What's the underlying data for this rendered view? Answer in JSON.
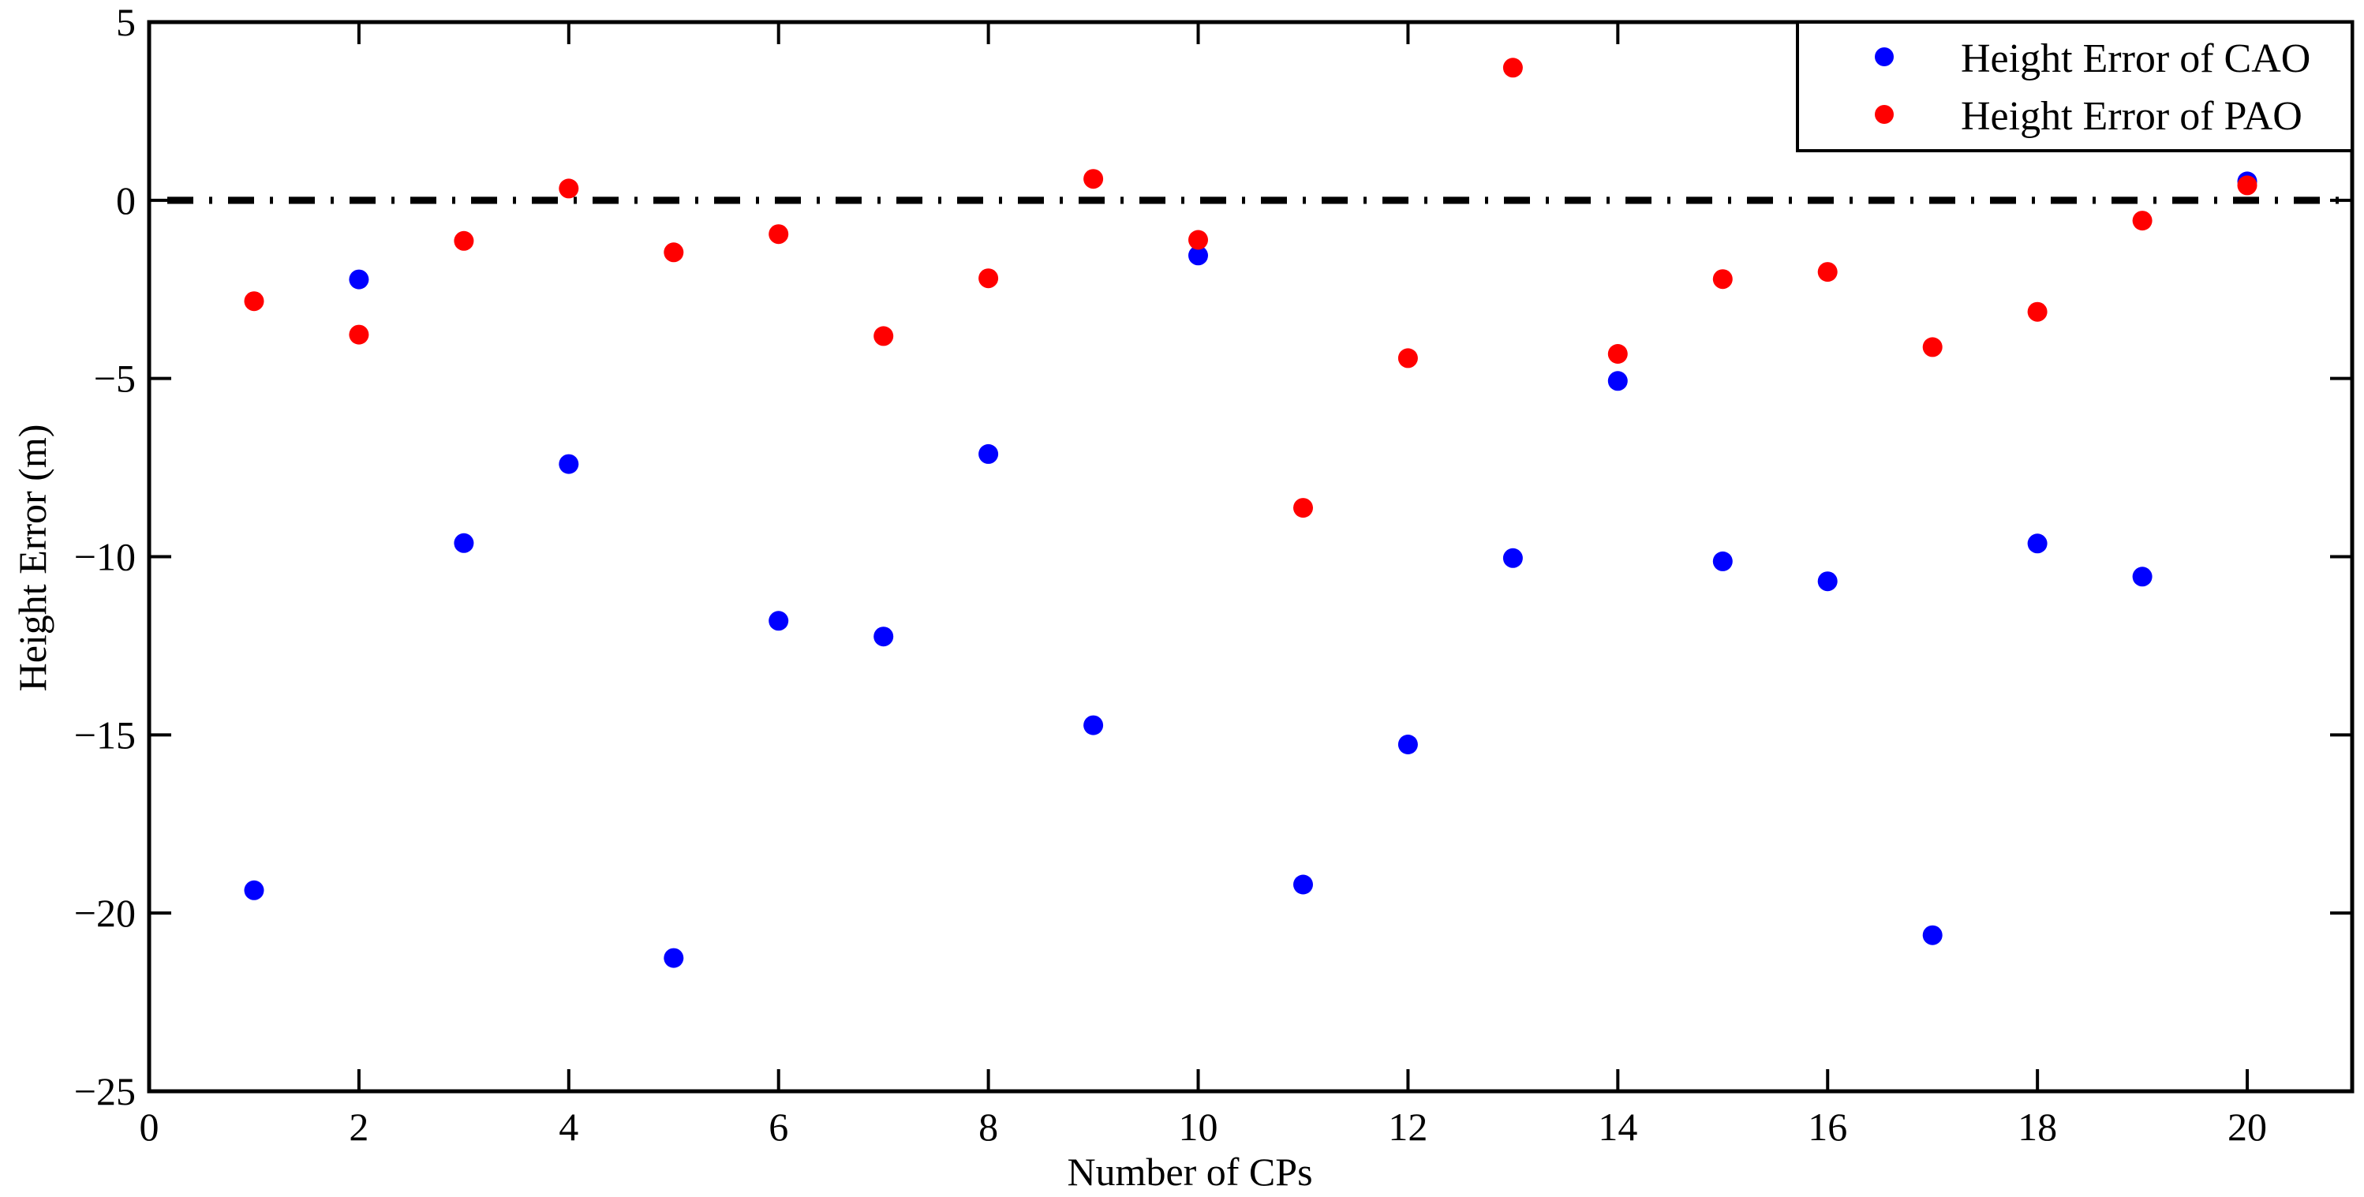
{
  "chart_data": {
    "type": "scatter",
    "title": "",
    "xlabel": "Number of CPs",
    "ylabel": "Height Error (m)",
    "xlim": [
      0,
      21
    ],
    "ylim": [
      -25,
      5
    ],
    "xticks": [
      0,
      2,
      4,
      6,
      8,
      10,
      12,
      14,
      16,
      18,
      20
    ],
    "yticks": [
      5,
      0,
      -5,
      -10,
      -15,
      -20,
      -25
    ],
    "grid": false,
    "legend_position": "upper right",
    "x": [
      1,
      2,
      3,
      4,
      5,
      6,
      7,
      8,
      9,
      10,
      11,
      12,
      13,
      14,
      15,
      16,
      17,
      18,
      19,
      20
    ],
    "series": [
      {
        "name": "Height Error of CAO",
        "color": "#0000ff",
        "marker": "circle",
        "values": [
          -19.36,
          -2.22,
          -9.62,
          -7.4,
          -21.26,
          -11.8,
          -12.24,
          -7.12,
          -14.73,
          -1.55,
          -19.2,
          -15.27,
          -10.04,
          -5.07,
          -10.13,
          -10.69,
          -20.62,
          -9.63,
          -10.56,
          0.53
        ]
      },
      {
        "name": "Height Error of PAO",
        "color": "#ff0000",
        "marker": "circle",
        "values": [
          -2.83,
          -3.77,
          -1.14,
          0.33,
          -1.46,
          -0.95,
          -3.81,
          -2.19,
          0.6,
          -1.11,
          -8.63,
          -4.43,
          3.72,
          -4.31,
          -2.21,
          -2.01,
          -4.12,
          -3.13,
          -0.57,
          0.42
        ]
      }
    ],
    "reference_lines": [
      {
        "axis": "y",
        "value": 0,
        "style": "dash-dot",
        "color": "#000000"
      }
    ]
  },
  "legend": {
    "items": [
      {
        "label": "Height Error of CAO",
        "color": "#0000ff"
      },
      {
        "label": "Height Error of PAO",
        "color": "#ff0000"
      }
    ]
  }
}
